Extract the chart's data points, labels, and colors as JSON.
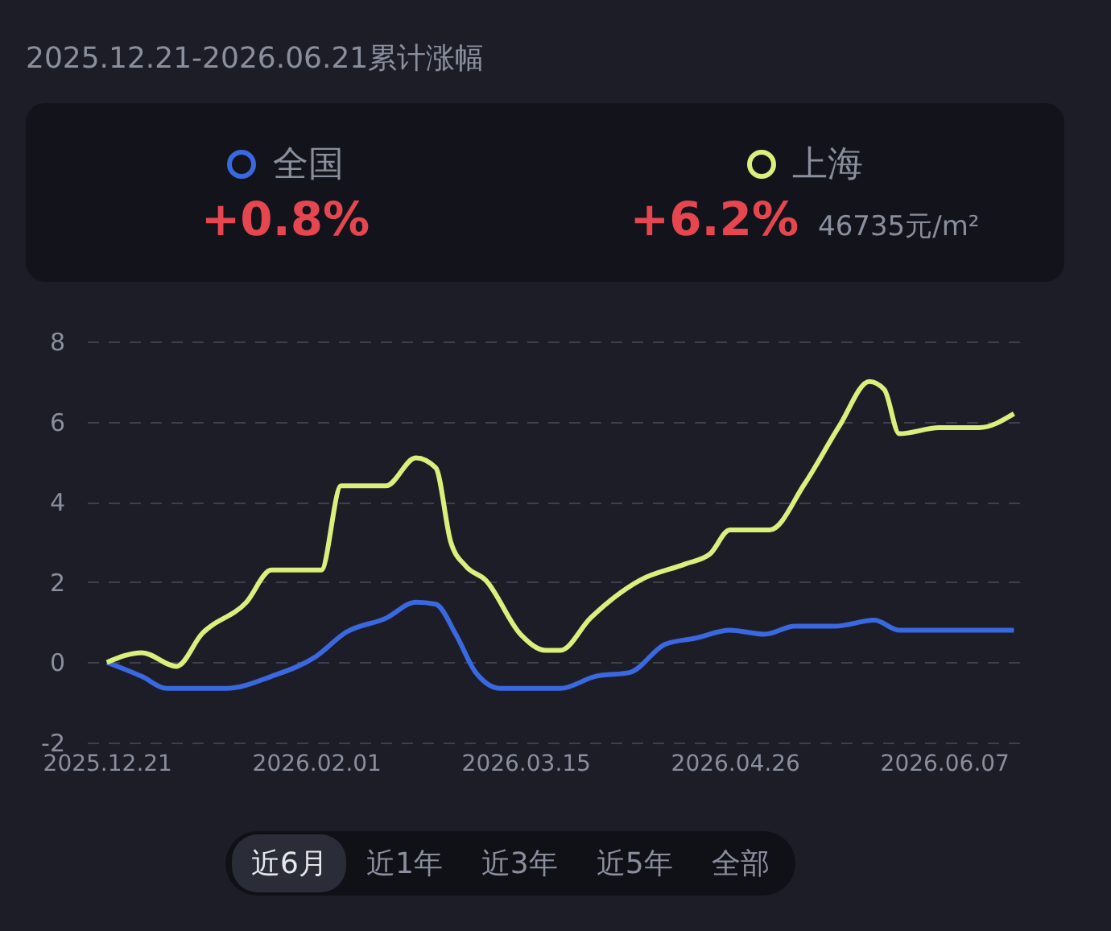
{
  "chart_data": {
    "type": "line",
    "title": "2025.12.21-2026.06.21累计涨幅",
    "annotations": [
      "+0.8%",
      "+6.2%",
      "46735元/m²",
      "近6月",
      "近1年",
      "近3年",
      "近5年",
      "全部"
    ],
    "legend": "top",
    "grid": "y",
    "line_style": "solid",
    "marker": "none",
    "xlim": [
      "2025-12-17",
      "2026-06-24"
    ],
    "xticks": [
      {
        "value": "2025-12-21",
        "label": "2025.12.21"
      },
      {
        "value": "2026-02-01",
        "label": "2026.02.01"
      },
      {
        "value": "2026-03-15",
        "label": "2026.03.15"
      },
      {
        "value": "2026-04-26",
        "label": "2026.04.26"
      },
      {
        "value": "2026-06-07",
        "label": "2026.06.07"
      }
    ],
    "ylim": [
      -2,
      8
    ],
    "yticks": [
      -2,
      0,
      2,
      4,
      6,
      8
    ],
    "series": [
      {
        "name": "全国",
        "color": "#3a68e0",
        "x": [
          "2025-12-21",
          "2025-12-28",
          "2026-01-02",
          "2026-01-14",
          "2026-01-23",
          "2026-02-01",
          "2026-02-07",
          "2026-02-15",
          "2026-02-21",
          "2026-02-25",
          "2026-03-01",
          "2026-03-05",
          "2026-03-10",
          "2026-03-22",
          "2026-03-29",
          "2026-04-05",
          "2026-04-12",
          "2026-04-18",
          "2026-04-25",
          "2026-05-02",
          "2026-05-08",
          "2026-05-16",
          "2026-05-24",
          "2026-05-29",
          "2026-06-21"
        ],
        "values": [
          0,
          -0.35,
          -0.65,
          -0.65,
          -0.35,
          0.15,
          0.75,
          1.1,
          1.5,
          1.45,
          0.7,
          -0.25,
          -0.65,
          -0.65,
          -0.35,
          -0.25,
          0.45,
          0.6,
          0.8,
          0.7,
          0.9,
          0.9,
          1.05,
          0.8,
          0.8
        ]
      },
      {
        "name": "上海",
        "color": "#d9f07c",
        "x": [
          "2025-12-21",
          "2025-12-28",
          "2026-01-04",
          "2026-01-09",
          "2026-01-18",
          "2026-01-23",
          "2026-02-02",
          "2026-02-06",
          "2026-02-15",
          "2026-02-21",
          "2026-02-25",
          "2026-02-28",
          "2026-03-03",
          "2026-03-07",
          "2026-03-14",
          "2026-03-19",
          "2026-03-22",
          "2026-03-28",
          "2026-04-07",
          "2026-04-16",
          "2026-04-21",
          "2026-04-25",
          "2026-05-03",
          "2026-05-10",
          "2026-05-17",
          "2026-05-23",
          "2026-05-26",
          "2026-05-29",
          "2026-06-06",
          "2026-06-14",
          "2026-06-21"
        ],
        "values": [
          0,
          0.24,
          -0.1,
          0.7,
          1.5,
          2.3,
          2.3,
          4.4,
          4.4,
          5.1,
          4.85,
          3.0,
          2.4,
          2.05,
          0.7,
          0.3,
          0.3,
          1.1,
          2.05,
          2.45,
          2.7,
          3.3,
          3.3,
          4.45,
          5.9,
          7.0,
          6.8,
          5.7,
          5.85,
          5.85,
          6.2
        ]
      }
    ]
  }
}
